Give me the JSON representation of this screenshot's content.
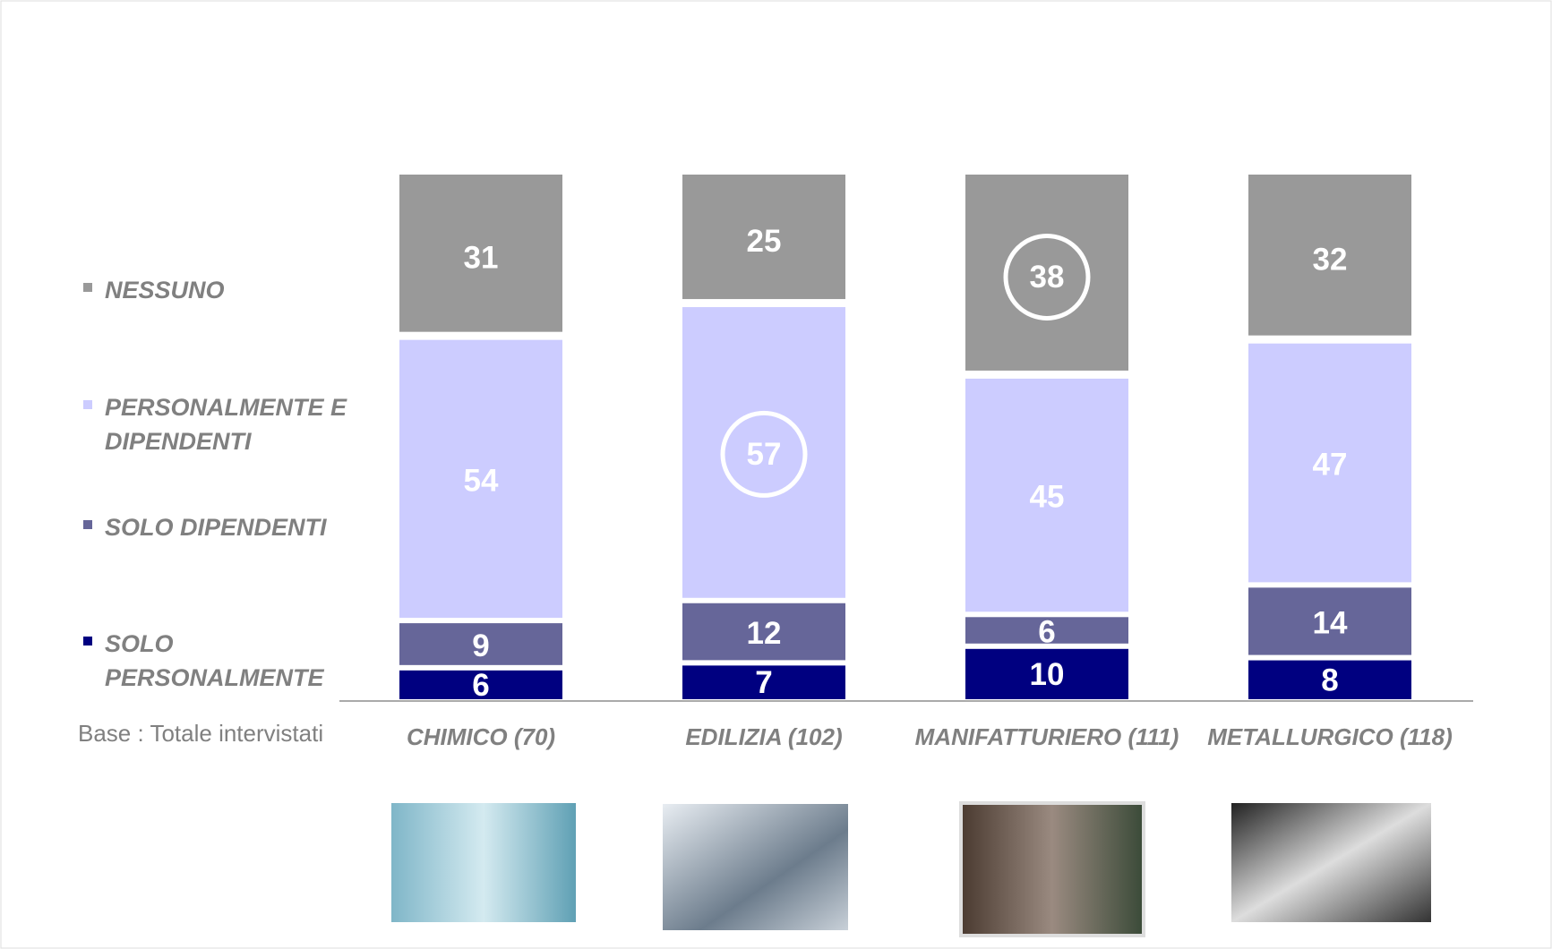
{
  "chart_data": {
    "type": "stacked_bar",
    "categories": [
      "CHIMICO (70)",
      "EDILIZIA (102)",
      "MANIFATTURIERO (111)",
      "METALLURGICO (118)"
    ],
    "series": [
      {
        "name": "SOLO PERSONALMENTE",
        "color": "#000080",
        "values": [
          6,
          7,
          10,
          8
        ]
      },
      {
        "name": "SOLO DIPENDENTI",
        "color": "#666699",
        "values": [
          9,
          12,
          6,
          14
        ]
      },
      {
        "name": "PERSONALMENTE E DIPENDENTI",
        "color": "#ccccff",
        "values": [
          54,
          57,
          45,
          47
        ]
      },
      {
        "name": "NESSUNO",
        "color": "#999999",
        "values": [
          31,
          25,
          38,
          32
        ]
      }
    ],
    "highlights": [
      {
        "series": 2,
        "index": 1
      },
      {
        "series": 3,
        "index": 2
      }
    ],
    "note": "Base : Totale intervistati"
  }
}
